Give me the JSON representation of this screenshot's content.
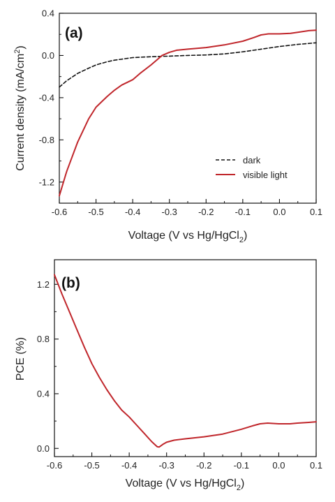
{
  "chart_data": [
    {
      "type": "line",
      "panel_label": "(a)",
      "xlabel": "Voltage (V vs Hg/HgCl",
      "xlabel_sub": "2",
      "xlabel_tail": ")",
      "ylabel": "Current density (mA/cm",
      "ylabel_sup": "2",
      "ylabel_tail": ")",
      "xlim": [
        -0.6,
        0.1
      ],
      "ylim": [
        -1.4,
        0.4
      ],
      "xticks": [
        "-0.6",
        "-0.5",
        "-0.4",
        "-0.3",
        "-0.2",
        "-0.1",
        "0.0",
        "0.1"
      ],
      "yticks": [
        "-1.2",
        "-0.8",
        "-0.4",
        "0.0",
        "0.4"
      ],
      "ytick_values": [
        -1.2,
        -0.8,
        -0.4,
        0.0,
        0.4
      ],
      "legend_position": "lower-right",
      "series": [
        {
          "name": "dark",
          "color": "#111111",
          "dash": "dashed",
          "x": [
            -0.6,
            -0.58,
            -0.55,
            -0.52,
            -0.5,
            -0.47,
            -0.45,
            -0.42,
            -0.4,
            -0.37,
            -0.35,
            -0.32,
            -0.3,
            -0.25,
            -0.2,
            -0.15,
            -0.1,
            -0.05,
            0.0,
            0.05,
            0.1
          ],
          "y": [
            -0.3,
            -0.24,
            -0.17,
            -0.12,
            -0.09,
            -0.06,
            -0.045,
            -0.03,
            -0.02,
            -0.015,
            -0.012,
            -0.008,
            -0.006,
            0.0,
            0.005,
            0.015,
            0.035,
            0.06,
            0.085,
            0.105,
            0.12
          ]
        },
        {
          "name": "visible light",
          "color": "#c0262b",
          "dash": "solid",
          "x": [
            -0.6,
            -0.58,
            -0.55,
            -0.52,
            -0.5,
            -0.47,
            -0.45,
            -0.43,
            -0.4,
            -0.38,
            -0.35,
            -0.33,
            -0.32,
            -0.3,
            -0.28,
            -0.25,
            -0.2,
            -0.15,
            -0.1,
            -0.07,
            -0.05,
            -0.03,
            0.0,
            0.03,
            0.05,
            0.08,
            0.1
          ],
          "y": [
            -1.33,
            -1.1,
            -0.82,
            -0.6,
            -0.49,
            -0.39,
            -0.33,
            -0.28,
            -0.23,
            -0.17,
            -0.09,
            -0.03,
            0.0,
            0.03,
            0.05,
            0.06,
            0.075,
            0.1,
            0.135,
            0.17,
            0.195,
            0.205,
            0.205,
            0.21,
            0.22,
            0.235,
            0.24
          ]
        }
      ]
    },
    {
      "type": "line",
      "panel_label": "(b)",
      "xlabel": "Voltage (V vs Hg/HgCl",
      "xlabel_sub": "2",
      "xlabel_tail": ")",
      "ylabel": "PCE (%)",
      "xlim": [
        -0.6,
        0.1
      ],
      "ylim": [
        -0.06,
        1.38
      ],
      "xticks": [
        "-0.6",
        "-0.5",
        "-0.4",
        "-0.3",
        "-0.2",
        "-0.1",
        "0.0",
        "0.1"
      ],
      "yticks": [
        "0.0",
        "0.4",
        "0.8",
        "1.2"
      ],
      "ytick_values": [
        0.0,
        0.4,
        0.8,
        1.2
      ],
      "series": [
        {
          "color": "#c0262b",
          "dash": "solid",
          "x": [
            -0.6,
            -0.58,
            -0.56,
            -0.54,
            -0.52,
            -0.5,
            -0.48,
            -0.46,
            -0.44,
            -0.42,
            -0.4,
            -0.38,
            -0.36,
            -0.34,
            -0.33,
            -0.325,
            -0.32,
            -0.31,
            -0.3,
            -0.28,
            -0.25,
            -0.2,
            -0.15,
            -0.1,
            -0.07,
            -0.05,
            -0.03,
            0.0,
            0.03,
            0.05,
            0.08,
            0.1
          ],
          "y": [
            1.27,
            1.13,
            1.0,
            0.87,
            0.74,
            0.62,
            0.52,
            0.43,
            0.35,
            0.28,
            0.23,
            0.17,
            0.11,
            0.05,
            0.025,
            0.012,
            0.01,
            0.03,
            0.045,
            0.06,
            0.07,
            0.085,
            0.105,
            0.14,
            0.165,
            0.18,
            0.185,
            0.18,
            0.18,
            0.185,
            0.19,
            0.195
          ]
        }
      ]
    }
  ]
}
